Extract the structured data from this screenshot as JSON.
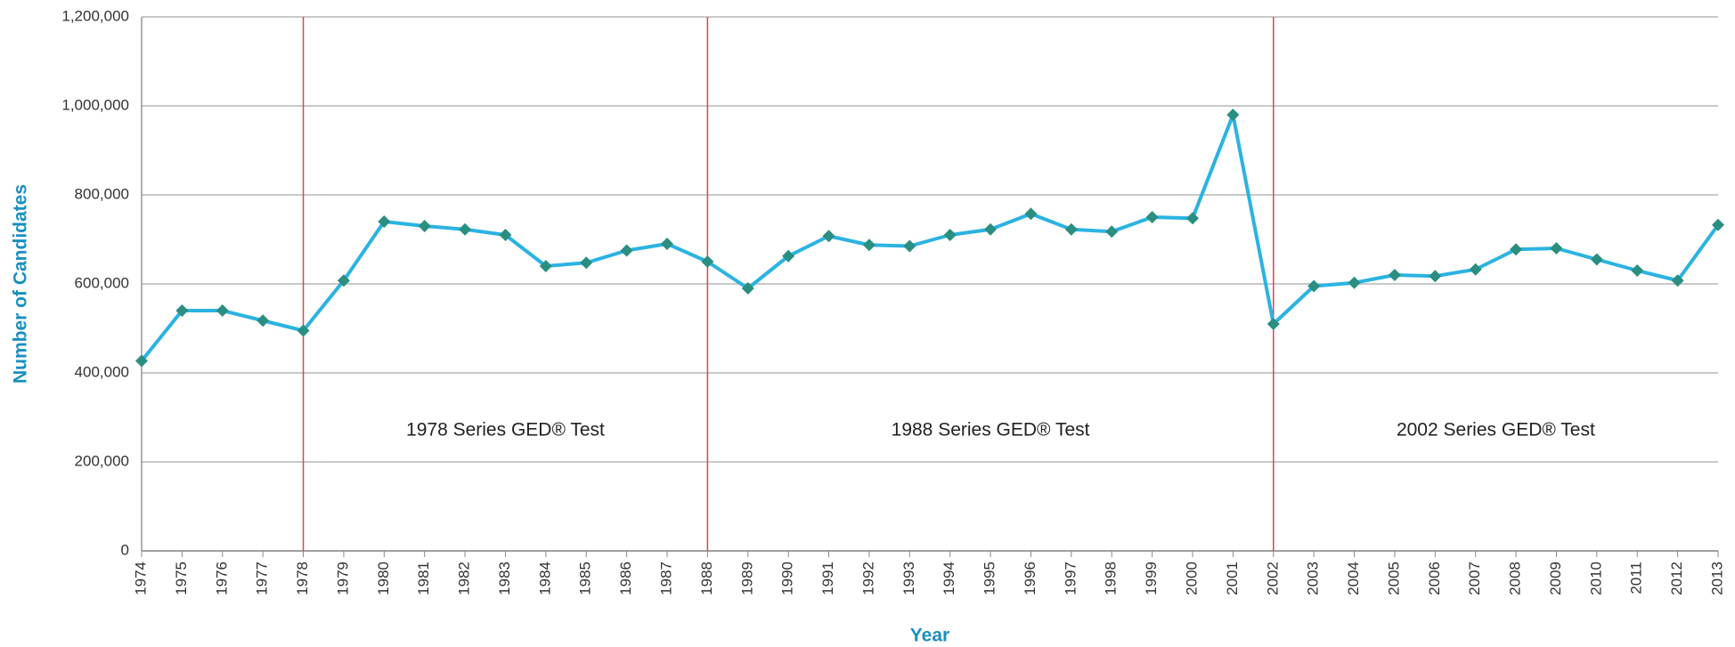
{
  "chart_data": {
    "type": "line",
    "x_label": "Year",
    "y_label": "Number of Candidates",
    "x": [
      1974,
      1975,
      1976,
      1977,
      1978,
      1979,
      1980,
      1981,
      1982,
      1983,
      1984,
      1985,
      1986,
      1987,
      1988,
      1989,
      1990,
      1991,
      1992,
      1993,
      1994,
      1995,
      1996,
      1997,
      1998,
      1999,
      2000,
      2001,
      2002,
      2003,
      2004,
      2005,
      2006,
      2007,
      2008,
      2009,
      2010,
      2011,
      2012,
      2013
    ],
    "series": [
      {
        "color": "#2bb3e2",
        "marker_color": "#2a8f80",
        "values": [
          427000,
          540000,
          540000,
          517500,
          495000,
          607500,
          740000,
          730000,
          722500,
          710000,
          640000,
          647500,
          675000,
          690000,
          650000,
          590000,
          662500,
          707500,
          687500,
          685000,
          710000,
          722500,
          757500,
          722500,
          717500,
          750000,
          747500,
          980000,
          510000,
          595000,
          602500,
          620000,
          617500,
          632500,
          677500,
          680000,
          655000,
          630000,
          607500,
          732500
        ]
      }
    ],
    "xlim": [
      1974,
      2013
    ],
    "ylim": [
      0,
      1200000
    ],
    "yticks": [
      0,
      {
        "value": 200000,
        "label": "200,000"
      },
      {
        "value": 400000,
        "label": "400,000"
      },
      {
        "value": 600000,
        "label": "600,000"
      },
      {
        "value": 800000,
        "label": "800,000"
      },
      {
        "value": 1000000,
        "label": "1,000,000"
      },
      {
        "value": 1200000,
        "label": "1,200,000"
      }
    ],
    "grid": true,
    "annotations": [
      {
        "x": 1978,
        "label": "1978 Series GED® Test"
      },
      {
        "x": 1988,
        "label": "1988 Series GED® Test"
      },
      {
        "x": 2002,
        "label": "2002 Series GED® Test"
      }
    ],
    "annotation_color": "#d9474f"
  }
}
